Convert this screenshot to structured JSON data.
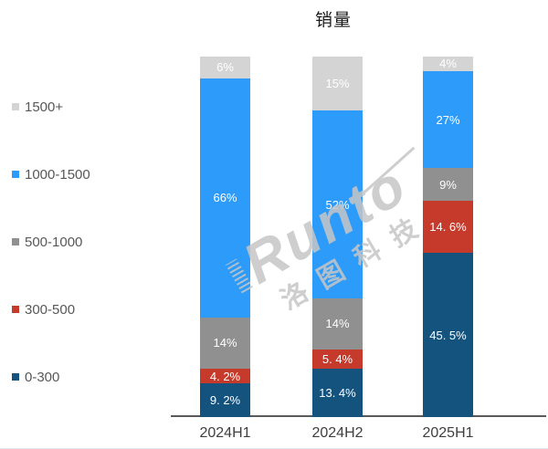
{
  "page": {
    "background": "#ffffff"
  },
  "chart_data": {
    "type": "bar",
    "variant": "stacked-100-percent-column",
    "title": "销量",
    "categories": [
      "2024H1",
      "2024H2",
      "2025H1"
    ],
    "series": [
      {
        "name": "1500+",
        "color": "#d4d4d4",
        "values": [
          6,
          15,
          4
        ],
        "labels": [
          "6%",
          "15%",
          "4%"
        ]
      },
      {
        "name": "1000-1500",
        "color": "#2d9bf9",
        "values": [
          66,
          52,
          27
        ],
        "labels": [
          "66%",
          "52%",
          "27%"
        ]
      },
      {
        "name": "500-1000",
        "color": "#909090",
        "values": [
          14,
          14,
          9
        ],
        "labels": [
          "14%",
          "14%",
          "9%"
        ]
      },
      {
        "name": "300-500",
        "color": "#c53a2b",
        "values": [
          4.2,
          5.4,
          14.6
        ],
        "labels": [
          "4. 2%",
          "5. 4%",
          "14. 6%"
        ]
      },
      {
        "name": "0-300",
        "color": "#15537f",
        "values": [
          9.2,
          13.4,
          45.5
        ],
        "labels": [
          "9. 2%",
          "13. 4%",
          "45. 5%"
        ]
      }
    ],
    "legend_position": "left",
    "legend_order_top_to_bottom": [
      "1500+",
      "1000-1500",
      "500-1000",
      "300-500",
      "0-300"
    ],
    "axis": {
      "baseline_color": "#5a5a5a",
      "gridlines": false
    },
    "data_label_color": "#ffffff"
  },
  "watermark": {
    "brand": "Runto",
    "company": "洛图科技",
    "color": "#c6c6c6"
  }
}
